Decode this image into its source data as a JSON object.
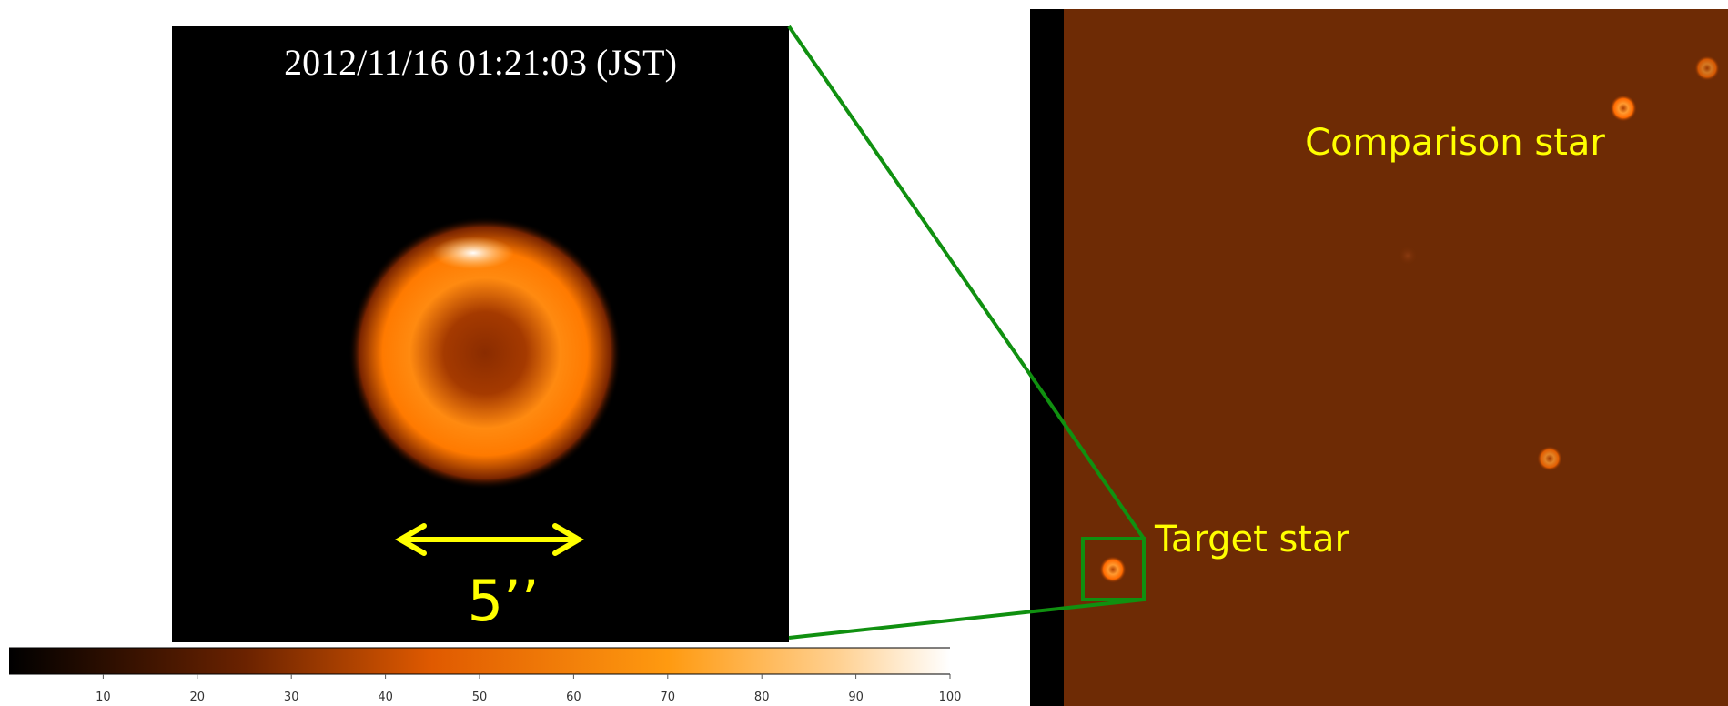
{
  "zoom_panel": {
    "timestamp": "2012/11/16  01:21:03  (JST)",
    "scale_label": "5’’"
  },
  "colorbar": {
    "lim": [
      0,
      100
    ],
    "ticks": [
      10,
      20,
      30,
      40,
      50,
      60,
      70,
      80,
      90,
      100
    ]
  },
  "field_panel": {
    "comparison_label": "Comparison star",
    "target_label": "Target star"
  }
}
